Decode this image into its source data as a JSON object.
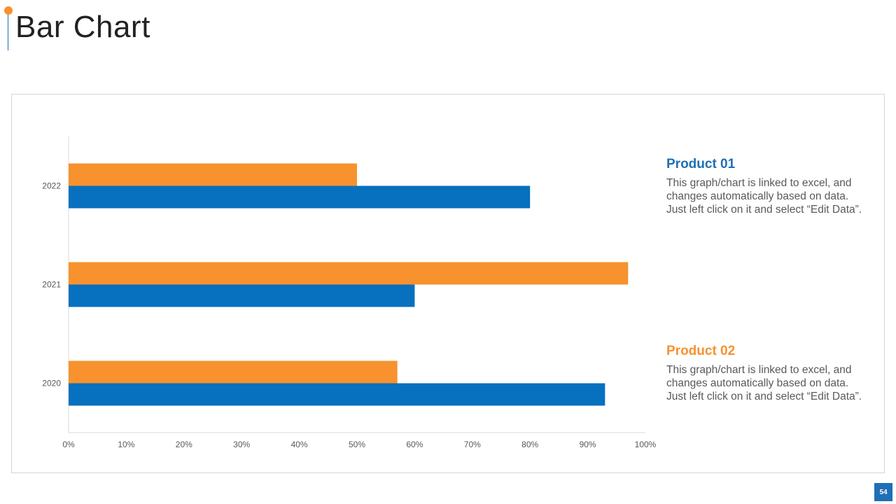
{
  "slide": {
    "title": "Bar Chart",
    "page_number": "54"
  },
  "colors": {
    "product_01": "#0770bf",
    "product_02": "#f7922e",
    "title_accent": "#f7922e"
  },
  "legend": [
    {
      "title": "Product 01",
      "color": "#0770bf",
      "lines": [
        "This graph/chart is linked to excel, and",
        "changes automatically based on data.",
        "Just left click on it and select “Edit Data”."
      ]
    },
    {
      "title": "Product 02",
      "color": "#f7922e",
      "lines": [
        "This graph/chart is linked to excel, and",
        "changes automatically based on data.",
        "Just left click on it and select “Edit Data”."
      ]
    }
  ],
  "chart_data": {
    "type": "bar",
    "orientation": "horizontal",
    "categories": [
      "2022",
      "2021",
      "2020"
    ],
    "series": [
      {
        "name": "Product 01",
        "color": "#0770bf",
        "values": [
          80,
          60,
          93
        ]
      },
      {
        "name": "Product 02",
        "color": "#f7922e",
        "values": [
          50,
          97,
          57
        ]
      }
    ],
    "xlim": [
      0,
      100
    ],
    "xticks": [
      "0%",
      "10%",
      "20%",
      "30%",
      "40%",
      "50%",
      "60%",
      "70%",
      "80%",
      "90%",
      "100%"
    ],
    "title": "",
    "xlabel": "",
    "ylabel": "",
    "grid": false
  }
}
